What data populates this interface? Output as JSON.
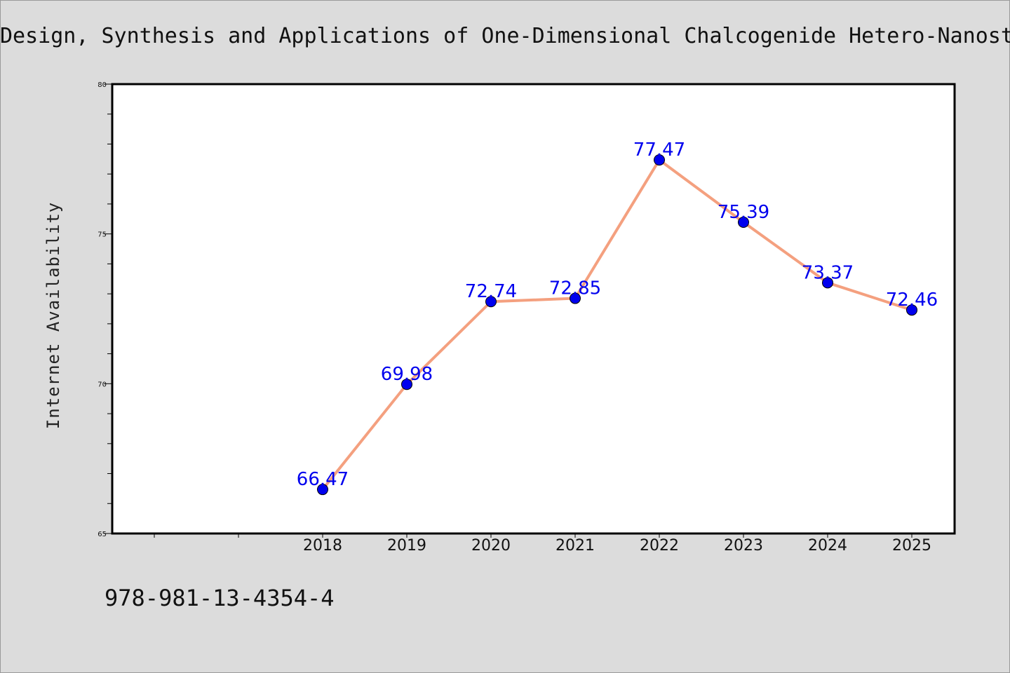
{
  "chart_data": {
    "type": "line",
    "title": "Design, Synthesis and Applications of One-Dimensional Chalcogenide Hetero-Nanost",
    "xlabel": "",
    "ylabel": "Internet Availability",
    "categories": [
      "2018",
      "2019",
      "2020",
      "2021",
      "2022",
      "2023",
      "2024",
      "2025"
    ],
    "series": [
      {
        "values": [
          66.47,
          69.98,
          72.74,
          72.85,
          77.47,
          75.39,
          73.37,
          72.46
        ]
      }
    ],
    "data_labels": [
      "66.47",
      "69.98",
      "72.74",
      "72.85",
      "77.47",
      "75.39",
      "73.37",
      "72.46"
    ],
    "ylim": [
      65,
      80
    ],
    "y_ticks": [
      "65",
      "70",
      "75",
      "80"
    ],
    "grid": false,
    "legend": "none",
    "colors": {
      "line": "#f4a07f",
      "marker": "#0000ee",
      "label": "#0000ee"
    }
  },
  "footer": {
    "isbn": "978-981-13-4354-4"
  }
}
